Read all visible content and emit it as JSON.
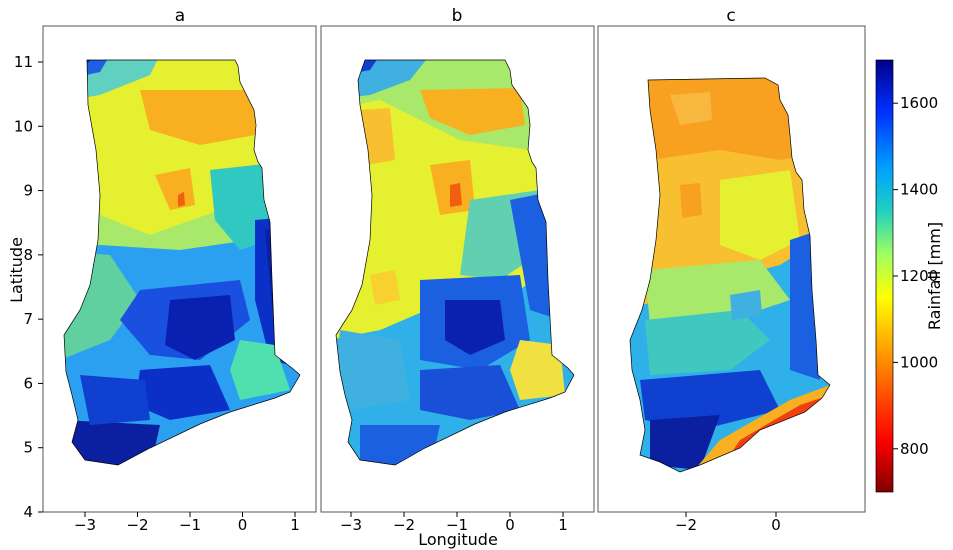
{
  "chart_data": {
    "type": "contour_map",
    "x_axis": {
      "label": "Longitude"
    },
    "y_axis": {
      "label": "Latitude",
      "ticks": [
        4,
        5,
        6,
        7,
        8,
        9,
        10,
        11
      ],
      "ylim": [
        4,
        11.5
      ]
    },
    "panels": [
      {
        "title": "a",
        "xlim": [
          -3.7,
          1.5
        ],
        "xticks": [
          -3,
          -2,
          -1,
          0,
          1
        ]
      },
      {
        "title": "b",
        "xlim": [
          -3.7,
          1.5
        ],
        "xticks": [
          -3,
          -2,
          -1,
          0,
          1
        ]
      },
      {
        "title": "c",
        "xlim": [
          -3.7,
          1.5
        ],
        "xticks": [
          -2,
          0
        ]
      }
    ],
    "colorbar": {
      "label": "Rainfall [mm]",
      "range": [
        700,
        1700
      ],
      "ticks": [
        800,
        1000,
        1200,
        1400,
        1600
      ],
      "colormap": "jet_r"
    }
  }
}
